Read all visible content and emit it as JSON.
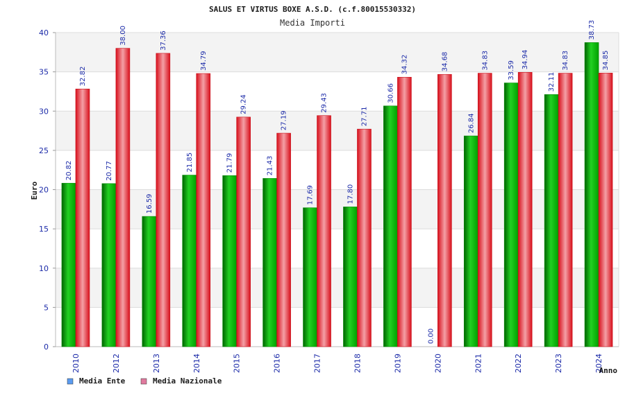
{
  "chart_data": {
    "type": "bar",
    "title": "SALUS ET VIRTUS BOXE A.S.D. (c.f.80015530332)",
    "subtitle": "Media Importi",
    "ylabel": "Euro",
    "xlabel": "Anno",
    "ylim": [
      0,
      40
    ],
    "yticks": [
      "0",
      "5",
      "10",
      "15",
      "20",
      "25",
      "30",
      "35",
      "40"
    ],
    "grid": true,
    "legend_position": "bottom-left",
    "categories": [
      "2010",
      "2012",
      "2013",
      "2014",
      "2015",
      "2016",
      "2017",
      "2018",
      "2019",
      "2020",
      "2021",
      "2022",
      "2023",
      "2024"
    ],
    "series": [
      {
        "name": "Media Ente",
        "color": "#00b400",
        "legend_color": "#5b9bf0",
        "values": [
          20.82,
          20.77,
          16.59,
          21.85,
          21.79,
          21.43,
          17.69,
          17.8,
          30.66,
          0.0,
          26.84,
          33.59,
          32.11,
          38.73
        ],
        "labels": [
          "20.82",
          "20.77",
          "16.59",
          "21.85",
          "21.79",
          "21.43",
          "17.69",
          "17.80",
          "30.66",
          "0.00",
          "26.84",
          "33.59",
          "32.11",
          "38.73"
        ]
      },
      {
        "name": "Media Nazionale",
        "color": "#e8202a",
        "legend_color": "#e07a9e",
        "values": [
          32.82,
          38.0,
          37.36,
          34.79,
          29.24,
          27.19,
          29.43,
          27.71,
          34.32,
          34.68,
          34.83,
          34.94,
          34.83,
          34.85
        ],
        "labels": [
          "32.82",
          "38.00",
          "37.36",
          "34.79",
          "29.24",
          "27.19",
          "29.43",
          "27.71",
          "34.32",
          "34.68",
          "34.83",
          "34.94",
          "34.83",
          "34.85"
        ]
      }
    ]
  }
}
